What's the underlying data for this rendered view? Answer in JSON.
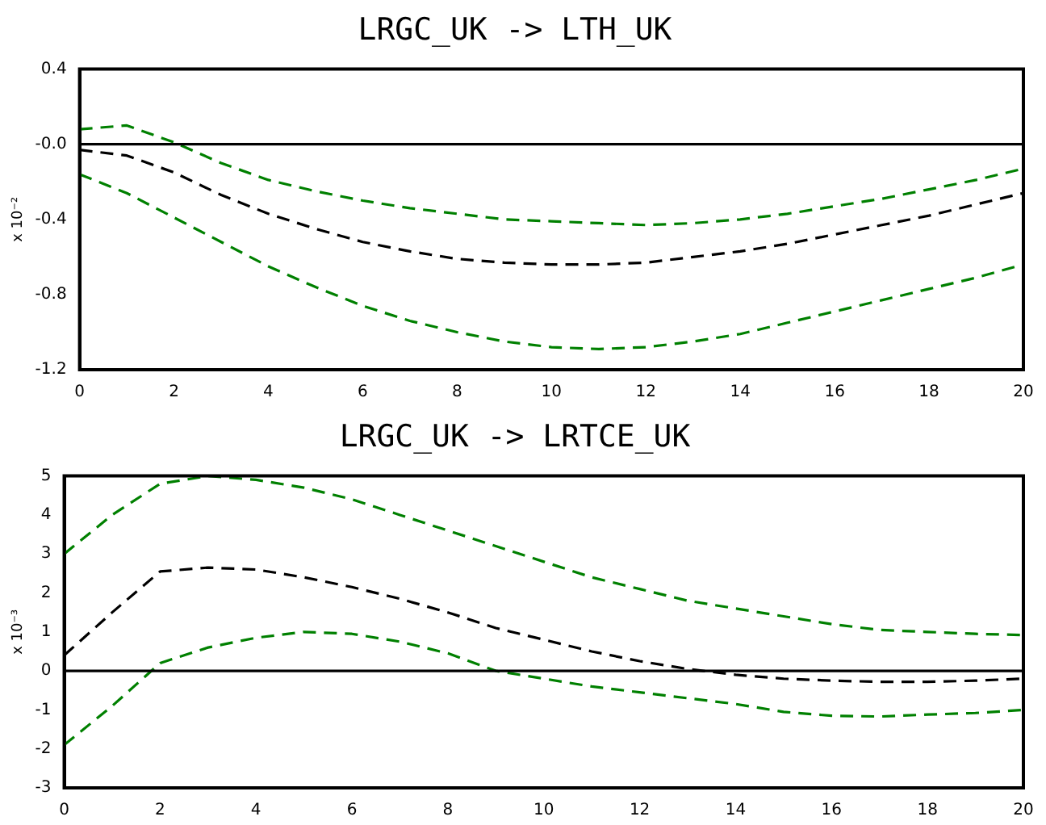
{
  "chart_data": [
    {
      "type": "line",
      "title": "LRGC_UK -> LTH_UK",
      "ylabel": "x 10⁻²",
      "x": [
        0,
        1,
        2,
        3,
        4,
        5,
        6,
        7,
        8,
        9,
        10,
        11,
        12,
        13,
        14,
        15,
        16,
        17,
        18,
        19,
        20
      ],
      "series": [
        {
          "color": "#008000",
          "values": [
            0.08,
            0.1,
            0.01,
            -0.1,
            -0.19,
            -0.25,
            -0.3,
            -0.34,
            -0.37,
            -0.4,
            -0.41,
            -0.42,
            -0.43,
            -0.42,
            -0.4,
            -0.37,
            -0.33,
            -0.29,
            -0.24,
            -0.19,
            -0.13
          ]
        },
        {
          "color": "#000000",
          "values": [
            -0.03,
            -0.06,
            -0.15,
            -0.27,
            -0.37,
            -0.45,
            -0.52,
            -0.57,
            -0.61,
            -0.63,
            -0.64,
            -0.64,
            -0.63,
            -0.6,
            -0.57,
            -0.53,
            -0.48,
            -0.43,
            -0.38,
            -0.32,
            -0.26
          ]
        },
        {
          "color": "#008000",
          "values": [
            -0.16,
            -0.26,
            -0.39,
            -0.52,
            -0.65,
            -0.76,
            -0.86,
            -0.94,
            -1.0,
            -1.05,
            -1.08,
            -1.09,
            -1.08,
            -1.05,
            -1.01,
            -0.95,
            -0.89,
            -0.83,
            -0.77,
            -0.71,
            -0.64
          ]
        }
      ],
      "xlim": [
        0,
        20
      ],
      "xticks": [
        0,
        2,
        4,
        6,
        8,
        10,
        12,
        14,
        16,
        18,
        20
      ],
      "ylim": [
        -1.2,
        0.4
      ],
      "yticks": [
        -1.2,
        -0.8,
        -0.4,
        {
          "value": 0,
          "label": "-0.0"
        },
        0.4
      ],
      "ref_lines": [
        {
          "axis": "y",
          "value": 0,
          "color": "#000000"
        }
      ],
      "grid": false,
      "legend": false,
      "marker": "none",
      "line_style": "dashed"
    },
    {
      "type": "line",
      "title": "LRGC_UK -> LRTCE_UK",
      "ylabel": "x 10⁻³",
      "x": [
        0,
        1,
        2,
        3,
        4,
        5,
        6,
        7,
        8,
        9,
        10,
        11,
        12,
        13,
        14,
        15,
        16,
        17,
        18,
        19,
        20
      ],
      "series": [
        {
          "color": "#008000",
          "values": [
            3.0,
            4.0,
            4.8,
            5.0,
            4.9,
            4.7,
            4.4,
            4.0,
            3.6,
            3.2,
            2.8,
            2.4,
            2.1,
            1.8,
            1.6,
            1.4,
            1.2,
            1.05,
            1.0,
            0.95,
            0.92
          ]
        },
        {
          "color": "#000000",
          "values": [
            0.4,
            1.5,
            2.55,
            2.65,
            2.6,
            2.4,
            2.15,
            1.85,
            1.5,
            1.1,
            0.8,
            0.5,
            0.25,
            0.05,
            -0.1,
            -0.2,
            -0.25,
            -0.28,
            -0.28,
            -0.25,
            -0.2
          ]
        },
        {
          "color": "#008000",
          "values": [
            -1.9,
            -0.9,
            0.2,
            0.6,
            0.85,
            1.0,
            0.95,
            0.75,
            0.45,
            0.0,
            -0.2,
            -0.4,
            -0.55,
            -0.7,
            -0.85,
            -1.05,
            -1.15,
            -1.17,
            -1.12,
            -1.08,
            -1.0
          ]
        }
      ],
      "xlim": [
        0,
        20
      ],
      "xticks": [
        0,
        2,
        4,
        6,
        8,
        10,
        12,
        14,
        16,
        18,
        20
      ],
      "ylim": [
        -3,
        5
      ],
      "yticks": [
        -3,
        -2,
        -1,
        0,
        1,
        2,
        3,
        4,
        5
      ],
      "ref_lines": [
        {
          "axis": "y",
          "value": 0,
          "color": "#000000"
        }
      ],
      "grid": false,
      "legend": false,
      "marker": "none",
      "line_style": "dashed"
    }
  ]
}
